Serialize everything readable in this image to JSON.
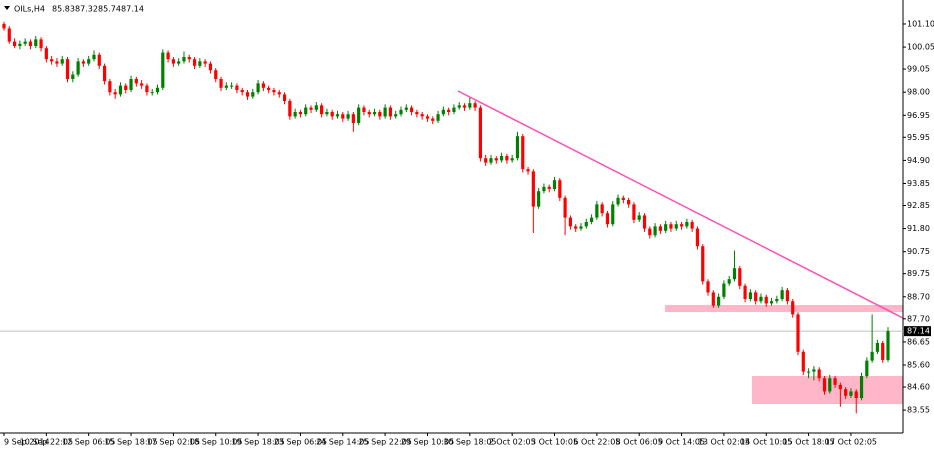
{
  "chart_data": {
    "type": "candlestick",
    "symbol": "OILs,H4",
    "header_values": [
      85.83,
      87.32,
      85.74,
      87.14
    ],
    "up_color": "#008000",
    "down_color": "#ff0000",
    "last_price": 87.14,
    "ylim": [
      82.51,
      102.19
    ],
    "yticks": [
      {
        "value": 101.1,
        "label": "101.10"
      },
      100.05,
      99.05,
      {
        "value": 98,
        "label": "98.00"
      },
      96.95,
      95.95,
      {
        "value": 94.9,
        "label": "94.90"
      },
      93.85,
      92.85,
      {
        "value": 91.8,
        "label": "91.80"
      },
      90.75,
      89.75,
      {
        "value": 88.7,
        "label": "88.70"
      },
      {
        "value": 87.7,
        "label": "87.70"
      },
      86.65,
      {
        "value": 85.6,
        "label": "85.60"
      },
      {
        "value": 84.6,
        "label": "84.60"
      },
      83.55
    ],
    "categories": [
      "9 Sep 2014",
      null,
      null,
      null,
      null,
      null,
      null,
      null,
      "10 Sep 22:05",
      null,
      null,
      null,
      null,
      null,
      null,
      null,
      "12 Sep 06:05",
      null,
      null,
      null,
      null,
      null,
      null,
      null,
      "15 Sep 18:05",
      null,
      null,
      null,
      null,
      null,
      null,
      null,
      "17 Sep 02:05",
      null,
      null,
      null,
      null,
      null,
      null,
      null,
      "18 Sep 10:05",
      null,
      null,
      null,
      null,
      null,
      null,
      null,
      "19 Sep 18:05",
      null,
      null,
      null,
      null,
      null,
      null,
      null,
      "23 Sep 06:05",
      null,
      null,
      null,
      null,
      null,
      null,
      null,
      "24 Sep 14:05",
      null,
      null,
      null,
      null,
      null,
      null,
      null,
      "25 Sep 22:05",
      null,
      null,
      null,
      null,
      null,
      null,
      null,
      "29 Sep 10:05",
      null,
      null,
      null,
      null,
      null,
      null,
      null,
      "30 Sep 18:05",
      null,
      null,
      null,
      null,
      null,
      null,
      null,
      "2 Oct 02:05",
      null,
      null,
      null,
      null,
      null,
      null,
      null,
      "3 Oct 10:05",
      null,
      null,
      null,
      null,
      null,
      null,
      null,
      "6 Oct 22:05",
      null,
      null,
      null,
      null,
      null,
      null,
      null,
      "8 Oct 06:05",
      null,
      null,
      null,
      null,
      null,
      null,
      null,
      "9 Oct 14:05",
      null,
      null,
      null,
      null,
      null,
      null,
      null,
      "13 Oct 02:05",
      null,
      null,
      null,
      null,
      null,
      null,
      null,
      "14 Oct 10:05",
      null,
      null,
      null,
      null,
      null,
      null,
      null,
      "15 Oct 18:05",
      null,
      null,
      null,
      null,
      null,
      null,
      null,
      "17 Oct 02:05",
      null,
      null,
      null,
      null,
      null,
      null,
      null
    ],
    "ohlc": [
      [
        101.1,
        101.2,
        100.8,
        100.9
      ],
      [
        100.9,
        101.0,
        100.2,
        100.3
      ],
      [
        100.3,
        100.45,
        100.0,
        100.1
      ],
      [
        100.1,
        100.35,
        99.95,
        100.2
      ],
      [
        100.2,
        100.45,
        100.1,
        100.3
      ],
      [
        100.3,
        100.4,
        99.95,
        100.1
      ],
      [
        100.1,
        100.55,
        100.0,
        100.4
      ],
      [
        100.4,
        100.5,
        99.85,
        100.0
      ],
      [
        100.0,
        100.1,
        99.35,
        99.5
      ],
      [
        99.5,
        99.65,
        99.25,
        99.4
      ],
      [
        99.4,
        99.55,
        99.15,
        99.3
      ],
      [
        99.3,
        99.65,
        99.2,
        99.5
      ],
      [
        99.5,
        99.6,
        98.45,
        98.6
      ],
      [
        98.6,
        98.95,
        98.45,
        98.8
      ],
      [
        98.8,
        99.55,
        98.7,
        99.4
      ],
      [
        99.4,
        99.5,
        99.15,
        99.3
      ],
      [
        99.3,
        99.65,
        99.2,
        99.5
      ],
      [
        99.5,
        99.9,
        99.4,
        99.7
      ],
      [
        99.7,
        99.8,
        99.05,
        99.2
      ],
      [
        99.2,
        99.3,
        98.35,
        98.5
      ],
      [
        98.5,
        98.6,
        97.85,
        98.0
      ],
      [
        98.0,
        98.15,
        97.7,
        97.9
      ],
      [
        97.9,
        98.45,
        97.8,
        98.3
      ],
      [
        98.3,
        98.4,
        97.95,
        98.1
      ],
      [
        98.1,
        98.75,
        98.0,
        98.6
      ],
      [
        98.6,
        98.7,
        98.25,
        98.4
      ],
      [
        98.4,
        98.55,
        98.15,
        98.3
      ],
      [
        98.3,
        98.4,
        97.85,
        98.0
      ],
      [
        98.0,
        98.15,
        97.85,
        98.0
      ],
      [
        98.0,
        98.35,
        97.9,
        98.2
      ],
      [
        98.2,
        99.95,
        98.1,
        99.8
      ],
      [
        99.8,
        99.9,
        99.35,
        99.5
      ],
      [
        99.5,
        99.6,
        99.15,
        99.3
      ],
      [
        99.3,
        99.55,
        99.2,
        99.4
      ],
      [
        99.4,
        99.85,
        99.3,
        99.6
      ],
      [
        99.6,
        99.7,
        99.35,
        99.5
      ],
      [
        99.5,
        99.6,
        99.05,
        99.2
      ],
      [
        99.2,
        99.55,
        99.1,
        99.4
      ],
      [
        99.4,
        99.5,
        99.15,
        99.3
      ],
      [
        99.3,
        99.4,
        98.85,
        99.0
      ],
      [
        99.0,
        99.1,
        98.45,
        98.6
      ],
      [
        98.6,
        98.7,
        98.05,
        98.2
      ],
      [
        98.2,
        98.45,
        98.1,
        98.3
      ],
      [
        98.3,
        98.45,
        98.15,
        98.3
      ],
      [
        98.3,
        98.4,
        97.95,
        98.1
      ],
      [
        98.1,
        98.2,
        97.85,
        98.0
      ],
      [
        98.0,
        98.1,
        97.65,
        97.8
      ],
      [
        97.8,
        98.15,
        97.7,
        98.0
      ],
      [
        98.0,
        98.55,
        97.9,
        98.4
      ],
      [
        98.4,
        98.5,
        98.05,
        98.2
      ],
      [
        98.2,
        98.3,
        97.95,
        98.1
      ],
      [
        98.1,
        98.2,
        97.85,
        98.0
      ],
      [
        98.0,
        98.1,
        97.75,
        97.9
      ],
      [
        97.9,
        98.0,
        97.45,
        97.6
      ],
      [
        97.6,
        97.7,
        96.75,
        96.9
      ],
      [
        96.9,
        97.25,
        96.8,
        97.1
      ],
      [
        97.1,
        97.2,
        96.85,
        97.0
      ],
      [
        97.0,
        97.45,
        96.9,
        97.3
      ],
      [
        97.3,
        97.4,
        97.05,
        97.2
      ],
      [
        97.2,
        97.55,
        97.1,
        97.4
      ],
      [
        97.4,
        97.5,
        96.85,
        97.0
      ],
      [
        97.0,
        97.25,
        96.9,
        97.1
      ],
      [
        97.1,
        97.2,
        96.75,
        96.9
      ],
      [
        96.9,
        97.15,
        96.8,
        97.0
      ],
      [
        97.0,
        97.1,
        96.65,
        96.8
      ],
      [
        96.8,
        97.15,
        96.7,
        97.0
      ],
      [
        97.0,
        97.1,
        96.2,
        96.6
      ],
      [
        96.6,
        97.45,
        96.5,
        97.3
      ],
      [
        97.3,
        97.4,
        96.95,
        97.1
      ],
      [
        97.1,
        97.2,
        96.85,
        97.0
      ],
      [
        97.0,
        97.25,
        96.9,
        97.1
      ],
      [
        97.1,
        97.2,
        96.75,
        96.9
      ],
      [
        96.9,
        97.45,
        96.8,
        97.3
      ],
      [
        97.3,
        97.4,
        96.75,
        96.9
      ],
      [
        96.9,
        97.15,
        96.8,
        97.0
      ],
      [
        97.0,
        97.35,
        96.9,
        97.2
      ],
      [
        97.2,
        97.45,
        97.1,
        97.3
      ],
      [
        97.3,
        97.4,
        96.95,
        97.1
      ],
      [
        97.1,
        97.2,
        96.85,
        97.0
      ],
      [
        97.0,
        97.1,
        96.75,
        96.9
      ],
      [
        96.9,
        97.0,
        96.65,
        96.8
      ],
      [
        96.8,
        96.9,
        96.55,
        96.7
      ],
      [
        96.7,
        97.15,
        96.6,
        97.0
      ],
      [
        97.0,
        97.35,
        96.9,
        97.2
      ],
      [
        97.2,
        97.3,
        96.95,
        97.1
      ],
      [
        97.1,
        97.45,
        97.0,
        97.3
      ],
      [
        97.3,
        97.55,
        97.2,
        97.4
      ],
      [
        97.4,
        97.5,
        97.15,
        97.3
      ],
      [
        97.3,
        97.75,
        97.2,
        97.5
      ],
      [
        97.5,
        97.6,
        97.15,
        97.3
      ],
      [
        97.3,
        97.4,
        94.85,
        95.0
      ],
      [
        95.0,
        95.15,
        94.65,
        94.8
      ],
      [
        94.8,
        95.15,
        94.7,
        95.0
      ],
      [
        95.0,
        95.1,
        94.75,
        94.9
      ],
      [
        94.9,
        95.25,
        94.8,
        95.1
      ],
      [
        95.1,
        95.2,
        94.75,
        94.9
      ],
      [
        94.9,
        95.15,
        94.8,
        95.0
      ],
      [
        95.0,
        96.2,
        94.9,
        96.0
      ],
      [
        96.0,
        96.1,
        94.35,
        94.5
      ],
      [
        94.5,
        94.6,
        94.25,
        94.4
      ],
      [
        94.4,
        94.5,
        91.6,
        92.8
      ],
      [
        92.8,
        93.65,
        92.7,
        93.5
      ],
      [
        93.5,
        93.85,
        93.4,
        93.7
      ],
      [
        93.7,
        93.8,
        93.45,
        93.6
      ],
      [
        93.6,
        94.15,
        93.5,
        94.0
      ],
      [
        94.0,
        94.1,
        93.05,
        93.2
      ],
      [
        93.2,
        93.3,
        91.5,
        92.3
      ],
      [
        92.3,
        92.4,
        91.75,
        91.9
      ],
      [
        91.9,
        92.0,
        91.65,
        91.8
      ],
      [
        91.8,
        92.05,
        91.7,
        91.9
      ],
      [
        91.9,
        92.25,
        91.8,
        92.1
      ],
      [
        92.1,
        92.45,
        92.0,
        92.3
      ],
      [
        92.3,
        93.05,
        92.2,
        92.9
      ],
      [
        92.9,
        93.0,
        92.35,
        92.5
      ],
      [
        92.5,
        92.6,
        91.85,
        92.0
      ],
      [
        92.0,
        93.05,
        91.9,
        92.9
      ],
      [
        92.9,
        93.35,
        92.8,
        93.2
      ],
      [
        93.2,
        93.3,
        92.95,
        93.1
      ],
      [
        93.1,
        93.2,
        92.75,
        92.9
      ],
      [
        92.9,
        93.0,
        92.05,
        92.2
      ],
      [
        92.2,
        92.55,
        92.1,
        92.4
      ],
      [
        92.4,
        92.5,
        91.65,
        91.8
      ],
      [
        91.8,
        91.9,
        91.35,
        91.5
      ],
      [
        91.5,
        92.05,
        91.4,
        91.9
      ],
      [
        91.9,
        92.0,
        91.55,
        91.7
      ],
      [
        91.7,
        92.15,
        91.6,
        92.0
      ],
      [
        92.0,
        92.1,
        91.65,
        91.8
      ],
      [
        91.8,
        92.15,
        91.7,
        92.0
      ],
      [
        92.0,
        92.1,
        91.75,
        91.9
      ],
      [
        91.9,
        92.25,
        91.8,
        92.1
      ],
      [
        92.1,
        92.2,
        91.65,
        91.8
      ],
      [
        91.8,
        91.9,
        90.85,
        91.0
      ],
      [
        91.0,
        91.1,
        89.25,
        89.4
      ],
      [
        89.4,
        89.5,
        88.75,
        88.9
      ],
      [
        88.9,
        89.0,
        88.2,
        88.3
      ],
      [
        88.3,
        88.85,
        88.2,
        88.7
      ],
      [
        88.7,
        89.45,
        88.6,
        89.3
      ],
      [
        89.3,
        89.65,
        89.2,
        89.5
      ],
      [
        89.5,
        90.8,
        89.4,
        90.0
      ],
      [
        90.0,
        90.1,
        89.05,
        89.2
      ],
      [
        89.2,
        89.3,
        88.45,
        88.6
      ],
      [
        88.6,
        89.05,
        88.5,
        88.9
      ],
      [
        88.9,
        89.0,
        88.35,
        88.5
      ],
      [
        88.5,
        88.85,
        88.4,
        88.7
      ],
      [
        88.7,
        88.8,
        88.25,
        88.4
      ],
      [
        88.4,
        88.65,
        88.3,
        88.5
      ],
      [
        88.5,
        88.75,
        88.4,
        88.6
      ],
      [
        88.6,
        89.15,
        88.5,
        89.0
      ],
      [
        89.0,
        89.1,
        88.35,
        88.5
      ],
      [
        88.5,
        88.6,
        87.75,
        87.9
      ],
      [
        87.9,
        88.0,
        86.05,
        86.2
      ],
      [
        86.2,
        86.3,
        85.15,
        85.3
      ],
      [
        85.3,
        85.45,
        85.0,
        85.3
      ],
      [
        85.3,
        85.55,
        84.9,
        85.4
      ],
      [
        85.4,
        85.5,
        84.85,
        85.0
      ],
      [
        85.0,
        85.1,
        84.25,
        84.4
      ],
      [
        84.4,
        85.15,
        84.3,
        85.0
      ],
      [
        85.0,
        85.1,
        84.55,
        84.7
      ],
      [
        84.7,
        84.8,
        83.7,
        84.5
      ],
      [
        84.5,
        84.6,
        84.05,
        84.2
      ],
      [
        84.2,
        84.55,
        84.1,
        84.4
      ],
      [
        84.4,
        84.5,
        83.4,
        84.1
      ],
      [
        84.1,
        85.25,
        84.0,
        85.1
      ],
      [
        85.1,
        85.95,
        85.0,
        85.8
      ],
      [
        85.8,
        87.9,
        85.7,
        86.2
      ],
      [
        86.2,
        86.75,
        86.1,
        86.6
      ],
      [
        86.6,
        86.7,
        85.7,
        85.83
      ],
      [
        85.83,
        87.32,
        85.74,
        87.14
      ]
    ]
  }
}
